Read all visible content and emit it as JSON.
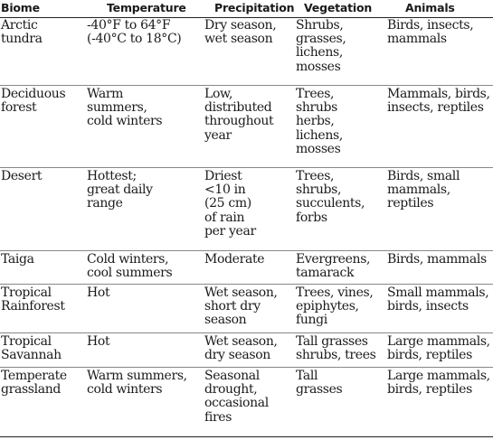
{
  "table": {
    "headers": [
      "Biome",
      "Temperature",
      "Precipitation",
      "Vegetation",
      "Animals"
    ],
    "rows": [
      {
        "biome": "Arctic\ntundra",
        "temperature": "-40°F to 64°F\n(-40°C to 18°C)",
        "precipitation": "Dry season,\nwet season",
        "vegetation": "Shrubs,\ngrasses,\nlichens,\nmosses",
        "animals": "Birds, insects,\nmammals"
      },
      {
        "biome": "Deciduous\nforest",
        "temperature": "Warm\nsummers,\ncold winters",
        "precipitation": "Low,\ndistributed\nthroughout\nyear",
        "vegetation": "Trees,\nshrubs\nherbs,\nlichens,\nmosses",
        "animals": "Mammals, birds,\ninsects, reptiles"
      },
      {
        "biome": "Desert",
        "temperature": "Hottest;\ngreat daily\nrange",
        "precipitation": "Driest\n<10 in\n(25 cm)\nof rain\nper year",
        "vegetation": "Trees,\nshrubs,\nsucculents,\nforbs",
        "animals": "Birds, small\nmammals,\nreptiles"
      },
      {
        "biome": "Taiga",
        "temperature": "Cold winters,\ncool summers",
        "precipitation": "Moderate",
        "vegetation": "Evergreens,\ntamarack",
        "animals": "Birds, mammals"
      },
      {
        "biome": "Tropical\nRainforest",
        "temperature": "Hot",
        "precipitation": "Wet season,\nshort dry\nseason",
        "vegetation": "Trees, vines,\nepiphytes,\nfungi",
        "animals": "Small mammals,\nbirds, insects"
      },
      {
        "biome": "Tropical\nSavannah",
        "temperature": "Hot",
        "precipitation": "Wet season,\ndry season",
        "vegetation": "Tall grasses\nshrubs, trees",
        "animals": "Large mammals,\nbirds, reptiles"
      },
      {
        "biome": "Temperate\ngrassland",
        "temperature": "Warm summers,\ncold winters",
        "precipitation": "Seasonal\ndrought,\noccasional\nfires",
        "vegetation": "Tall\ngrasses",
        "animals": "Large mammals,\nbirds, reptiles"
      }
    ]
  }
}
